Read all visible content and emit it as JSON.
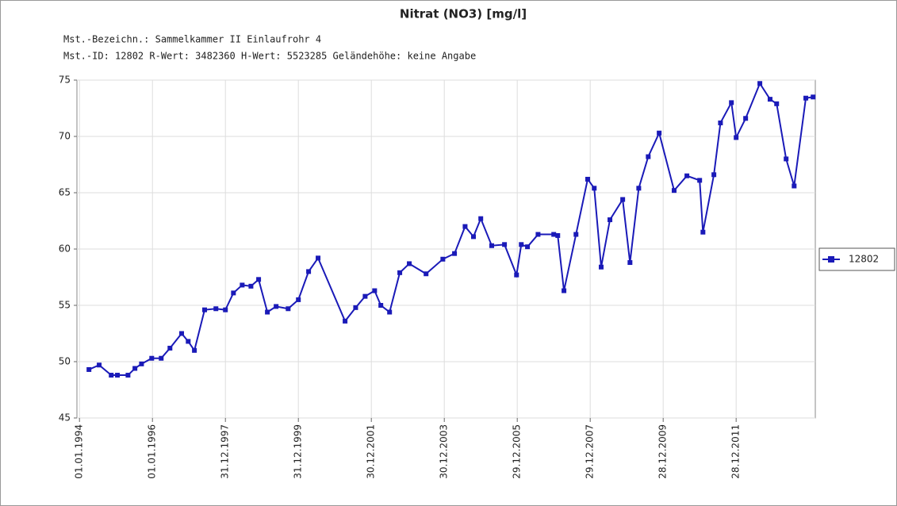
{
  "chart_data": {
    "type": "line",
    "title": "Nitrat (NO3) [mg/l]",
    "info": [
      "Mst.-Bezeichn.: Sammelkammer II  Einlaufrohr 4",
      "Mst.-ID: 12802   R-Wert: 3482360   H-Wert: 5523285   Geländehöhe: keine Angabe"
    ],
    "x": [
      1994.26,
      1994.54,
      1994.87,
      1995.04,
      1995.33,
      1995.52,
      1995.7,
      1995.98,
      1996.24,
      1996.48,
      1996.8,
      1996.98,
      1997.15,
      1997.43,
      1997.74,
      1998.0,
      1998.22,
      1998.46,
      1998.7,
      1998.91,
      1999.15,
      1999.39,
      1999.72,
      2000.0,
      2000.28,
      2000.54,
      2001.28,
      2001.57,
      2001.83,
      2002.09,
      2002.26,
      2002.5,
      2002.78,
      2003.04,
      2003.5,
      2003.96,
      2004.28,
      2004.57,
      2004.8,
      2005.0,
      2005.3,
      2005.65,
      2005.98,
      2006.11,
      2006.28,
      2006.57,
      2007.0,
      2007.11,
      2007.28,
      2007.61,
      2007.93,
      2008.11,
      2008.3,
      2008.54,
      2008.89,
      2009.09,
      2009.33,
      2009.59,
      2009.89,
      2010.3,
      2010.65,
      2011.0,
      2011.09,
      2011.39,
      2011.57,
      2011.87,
      2012.0,
      2012.26,
      2012.65,
      2012.93,
      2013.11,
      2013.37,
      2013.59,
      2013.91,
      2014.11
    ],
    "series": [
      {
        "name": "12802",
        "color": "#1a1ab8",
        "values": [
          49.3,
          49.7,
          48.8,
          48.8,
          48.8,
          49.4,
          49.8,
          50.3,
          50.3,
          51.2,
          52.5,
          51.8,
          51.0,
          54.6,
          54.7,
          54.6,
          56.1,
          56.8,
          56.7,
          57.3,
          54.4,
          54.9,
          54.7,
          55.5,
          58.0,
          59.2,
          53.6,
          54.8,
          55.8,
          56.3,
          55.0,
          54.4,
          57.9,
          58.7,
          57.8,
          59.1,
          59.6,
          62.0,
          61.1,
          62.7,
          60.3,
          60.4,
          57.7,
          60.4,
          60.2,
          61.3,
          61.3,
          61.2,
          56.3,
          61.3,
          66.2,
          65.4,
          58.4,
          62.6,
          64.4,
          58.8,
          65.4,
          68.2,
          70.3,
          65.2,
          66.5,
          66.1,
          61.5,
          66.6,
          71.2,
          73.0,
          69.9,
          71.6,
          74.7,
          73.3,
          72.9,
          68.0,
          65.6,
          73.4,
          73.5
        ]
      }
    ],
    "xlim": [
      1993.93,
      2014.17
    ],
    "xticks": [
      {
        "value": 1994,
        "label": "01.01.1994"
      },
      {
        "value": 1996,
        "label": "01.01.1996"
      },
      {
        "value": 1998,
        "label": "31.12.1997"
      },
      {
        "value": 2000,
        "label": "31.12.1999"
      },
      {
        "value": 2002,
        "label": "30.12.2001"
      },
      {
        "value": 2004,
        "label": "30.12.2003"
      },
      {
        "value": 2006,
        "label": "29.12.2005"
      },
      {
        "value": 2008,
        "label": "29.12.2007"
      },
      {
        "value": 2010,
        "label": "28.12.2009"
      },
      {
        "value": 2012,
        "label": "28.12.2011"
      }
    ],
    "ylim": [
      45,
      75
    ],
    "yticks": [
      45,
      50,
      55,
      60,
      65,
      70,
      75
    ],
    "grid": true,
    "legend": "right"
  }
}
